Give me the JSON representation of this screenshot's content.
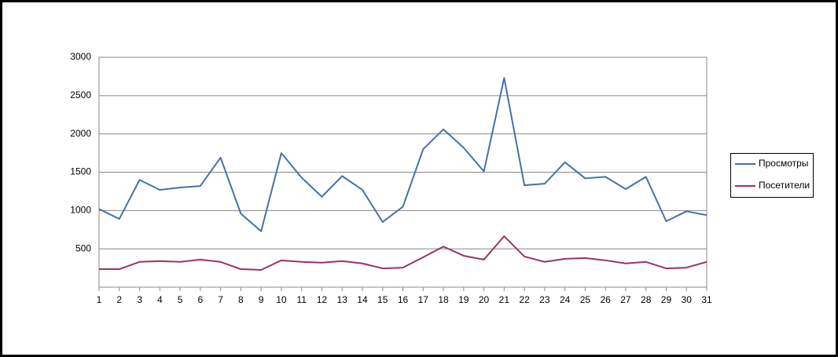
{
  "chart_data": {
    "type": "line",
    "x": [
      1,
      2,
      3,
      4,
      5,
      6,
      7,
      8,
      9,
      10,
      11,
      12,
      13,
      14,
      15,
      16,
      17,
      18,
      19,
      20,
      21,
      22,
      23,
      24,
      25,
      26,
      27,
      28,
      29,
      30,
      31
    ],
    "xlim": [
      1,
      31
    ],
    "xticks": [
      1,
      2,
      3,
      4,
      5,
      6,
      7,
      8,
      9,
      10,
      11,
      12,
      13,
      14,
      15,
      16,
      17,
      18,
      19,
      20,
      21,
      22,
      23,
      24,
      25,
      26,
      27,
      28,
      29,
      30,
      31
    ],
    "ylim": [
      0,
      3000
    ],
    "yticks": [
      500,
      1000,
      1500,
      2000,
      2500,
      3000
    ],
    "grid": true,
    "legend": "right",
    "series": [
      {
        "name": "Просмотры",
        "color": "#4572a7",
        "values": [
          1020,
          890,
          1400,
          1270,
          1300,
          1320,
          1690,
          960,
          730,
          1750,
          1430,
          1180,
          1450,
          1270,
          850,
          1050,
          1800,
          2060,
          1820,
          1510,
          2730,
          1330,
          1350,
          1630,
          1420,
          1440,
          1280,
          1440,
          860,
          990,
          940
        ]
      },
      {
        "name": "Посетители",
        "color": "#993366",
        "values": [
          235,
          235,
          330,
          340,
          330,
          360,
          330,
          235,
          225,
          350,
          330,
          320,
          340,
          310,
          245,
          255,
          390,
          530,
          410,
          360,
          665,
          400,
          330,
          370,
          380,
          350,
          310,
          330,
          245,
          255,
          330
        ]
      }
    ]
  }
}
